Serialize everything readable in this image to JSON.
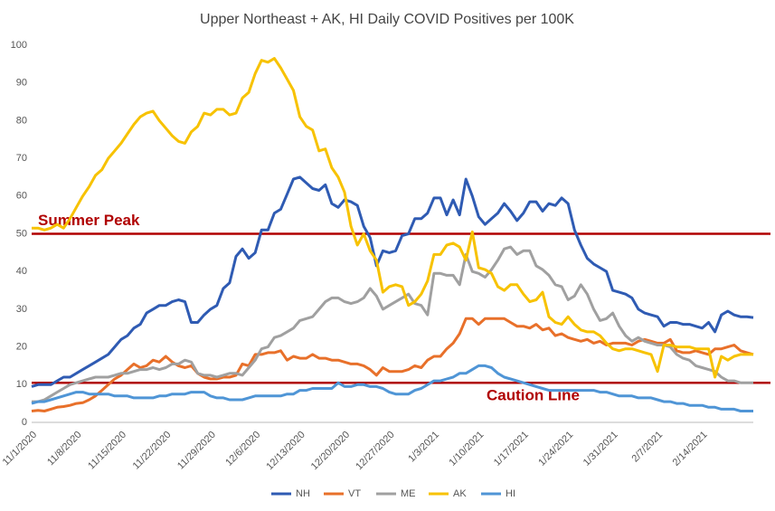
{
  "chart_data": {
    "type": "line",
    "title": "Upper Northeast + AK, HI Daily COVID Positives per 100K",
    "categories": [
      "11/1/2020",
      null,
      null,
      null,
      null,
      null,
      null,
      "11/8/2020",
      null,
      null,
      null,
      null,
      null,
      null,
      "11/15/2020",
      null,
      null,
      null,
      null,
      null,
      null,
      "11/22/2020",
      null,
      null,
      null,
      null,
      null,
      null,
      "11/29/2020",
      null,
      null,
      null,
      null,
      null,
      null,
      "12/6/2020",
      null,
      null,
      null,
      null,
      null,
      null,
      "12/13/2020",
      null,
      null,
      null,
      null,
      null,
      null,
      "12/20/2020",
      null,
      null,
      null,
      null,
      null,
      null,
      "12/27/2020",
      null,
      null,
      null,
      null,
      null,
      null,
      "1/3/2021",
      null,
      null,
      null,
      null,
      null,
      null,
      "1/10/2021",
      null,
      null,
      null,
      null,
      null,
      null,
      "1/17/2021",
      null,
      null,
      null,
      null,
      null,
      null,
      "1/24/2021",
      null,
      null,
      null,
      null,
      null,
      null,
      "1/31/2021",
      null,
      null,
      null,
      null,
      null,
      null,
      "2/7/2021",
      null,
      null,
      null,
      null,
      null,
      null,
      "2/14/2021",
      null,
      null,
      null,
      null,
      null,
      null,
      null,
      null
    ],
    "series": [
      {
        "name": "NH",
        "color": "#2f5bb3",
        "values": [
          9.5,
          10,
          10,
          10,
          11,
          12,
          12,
          13,
          14,
          15,
          16,
          17,
          18,
          20,
          22,
          23,
          25,
          26,
          29,
          30,
          31,
          31,
          32,
          32.5,
          32,
          26.5,
          26.5,
          28.5,
          30,
          31,
          35.5,
          37,
          44,
          46,
          43.5,
          45,
          51,
          51,
          55.5,
          56.5,
          60.5,
          64.5,
          65,
          63.5,
          62,
          61.5,
          63,
          58,
          57,
          59,
          58.5,
          57.5,
          52,
          49,
          41.5,
          45.5,
          45,
          45.5,
          49.5,
          50,
          54,
          54,
          55.5,
          59.5,
          59.5,
          55,
          59,
          55,
          64.5,
          60,
          54.5,
          52.5,
          54,
          55.5,
          58,
          56,
          53.5,
          55.5,
          58.5,
          58.5,
          56,
          58,
          57.5,
          59.5,
          58,
          51,
          47,
          43.5,
          42,
          41,
          40,
          35,
          34.5,
          34,
          33,
          30,
          29,
          28.5,
          28,
          25.5,
          26.5,
          26.5,
          26,
          26,
          25.5,
          25,
          26.5,
          24,
          28.5,
          29.5,
          28.5,
          28,
          28,
          27.8
        ]
      },
      {
        "name": "VT",
        "color": "#e8702a",
        "values": [
          3,
          3.2,
          3,
          3.5,
          4,
          4.2,
          4.5,
          5,
          5.2,
          6,
          7,
          8.5,
          10,
          11.5,
          12.5,
          14,
          15.5,
          14.5,
          15,
          16.5,
          16,
          17.5,
          16,
          15,
          14.5,
          15,
          13,
          12,
          11.5,
          11.5,
          12,
          12,
          12.5,
          15.5,
          15,
          18,
          18,
          18.5,
          18.5,
          19,
          16.5,
          17.5,
          17,
          17,
          18,
          17,
          17,
          16.5,
          16.5,
          16,
          15.5,
          15.5,
          15,
          14,
          12.5,
          14.5,
          13.5,
          13.5,
          13.5,
          14,
          15,
          14.5,
          16.5,
          17.5,
          17.5,
          19.5,
          21,
          23.5,
          27.5,
          27.5,
          26,
          27.5,
          27.5,
          27.5,
          27.5,
          26.5,
          25.5,
          25.5,
          25,
          26,
          24.5,
          25,
          23,
          23.5,
          22.5,
          22,
          21.5,
          22,
          21,
          21.5,
          20.5,
          21,
          21,
          21,
          20.5,
          21.5,
          22,
          21.5,
          21,
          21,
          22,
          19,
          18.5,
          18.5,
          19,
          18.5,
          18,
          19.5,
          19.5,
          20,
          20.5,
          19,
          18.5,
          18
        ]
      },
      {
        "name": "ME",
        "color": "#a0a0a0",
        "values": [
          5.5,
          5.5,
          6,
          7,
          8,
          9,
          10,
          10.5,
          11,
          11.5,
          12,
          12,
          12,
          12.5,
          13,
          13,
          13.5,
          14,
          14,
          14.5,
          14,
          14.5,
          15.5,
          15.5,
          16.5,
          16,
          13,
          12.5,
          12.5,
          12,
          12.5,
          13,
          13,
          12.5,
          14.5,
          16.5,
          19.5,
          20,
          22.5,
          23,
          24,
          25,
          27,
          27.5,
          28,
          30,
          32,
          33,
          33,
          32,
          31.5,
          32,
          33,
          35.5,
          33.5,
          30,
          31,
          32,
          33,
          34,
          31.5,
          31,
          28.5,
          39.5,
          39.5,
          39,
          39,
          36.5,
          44.5,
          40,
          39.5,
          38.5,
          40.5,
          43,
          46,
          46.5,
          44.5,
          45.5,
          45.5,
          41.5,
          40.5,
          39,
          36.5,
          36,
          32.5,
          33.5,
          36.5,
          34,
          30,
          27,
          27.5,
          29,
          25.5,
          23,
          21.5,
          22.5,
          21.5,
          21,
          20.5,
          20.5,
          20,
          18,
          17,
          16.5,
          15,
          14.5,
          14,
          13.5,
          12,
          11,
          11,
          10.5,
          10.5,
          10.5
        ]
      },
      {
        "name": "AK",
        "color": "#f7c200",
        "values": [
          51.5,
          51.5,
          51,
          51.5,
          52.5,
          51.5,
          54,
          57,
          60,
          62.5,
          65.5,
          67,
          70,
          72,
          74,
          76.5,
          79,
          81,
          82,
          82.5,
          80,
          78,
          76,
          74.5,
          74,
          77,
          78.5,
          82,
          81.5,
          83,
          83,
          81.5,
          82,
          86,
          87.5,
          92.5,
          96,
          95.5,
          96.5,
          94,
          91,
          88,
          81,
          78.5,
          77.5,
          72,
          72.5,
          67.5,
          65,
          61,
          52,
          47,
          50,
          45.5,
          43,
          34.5,
          36,
          36.5,
          36,
          31,
          32,
          34,
          37.5,
          44.5,
          44.5,
          47,
          47.5,
          46.5,
          43,
          50.5,
          41,
          40.5,
          39.5,
          36,
          35,
          36.5,
          36.5,
          34,
          32,
          32.5,
          34.5,
          28,
          26.5,
          26,
          28,
          26,
          24.5,
          24,
          24,
          23,
          21,
          19.5,
          19,
          19.5,
          19.5,
          19,
          18.5,
          18,
          13.5,
          20.5,
          20.5,
          20,
          20,
          20,
          19.5,
          19.5,
          19.5,
          12,
          17.5,
          16.5,
          17.5,
          18,
          18,
          18
        ]
      },
      {
        "name": "HI",
        "color": "#4f95d6",
        "values": [
          5,
          5.5,
          5.5,
          6,
          6.5,
          7,
          7.5,
          8,
          8,
          7.5,
          7.5,
          7.5,
          7.5,
          7,
          7,
          7,
          6.5,
          6.5,
          6.5,
          6.5,
          7,
          7,
          7.5,
          7.5,
          7.5,
          8,
          8,
          8,
          7,
          6.5,
          6.5,
          6,
          6,
          6,
          6.5,
          7,
          7,
          7,
          7,
          7,
          7.5,
          7.5,
          8.5,
          8.5,
          9,
          9,
          9,
          9,
          10.5,
          9.5,
          9.5,
          10,
          10,
          9.5,
          9.5,
          9,
          8,
          7.5,
          7.5,
          7.5,
          8.5,
          9,
          10,
          11,
          11,
          11.5,
          12,
          13,
          13,
          14,
          15,
          15,
          14.5,
          13,
          12,
          11.5,
          11,
          10.5,
          10,
          9.5,
          9,
          8.5,
          8.5,
          8.5,
          8.5,
          8.5,
          8.5,
          8.5,
          8.5,
          8,
          8,
          7.5,
          7,
          7,
          7,
          6.5,
          6.5,
          6.5,
          6,
          5.5,
          5.5,
          5,
          5,
          4.5,
          4.5,
          4.5,
          4,
          4,
          3.5,
          3.5,
          3.5,
          3,
          3,
          3
        ]
      }
    ],
    "ylim": [
      0,
      100
    ],
    "yticks": [
      0,
      10,
      20,
      30,
      40,
      50,
      60,
      70,
      80,
      90,
      100
    ],
    "grid": false,
    "legend": "bottom",
    "annotations": [
      {
        "text": "Summer Peak",
        "value": 50,
        "color": "#b00000"
      },
      {
        "text": "Caution Line",
        "value": 10.5,
        "color": "#b00000"
      }
    ]
  }
}
